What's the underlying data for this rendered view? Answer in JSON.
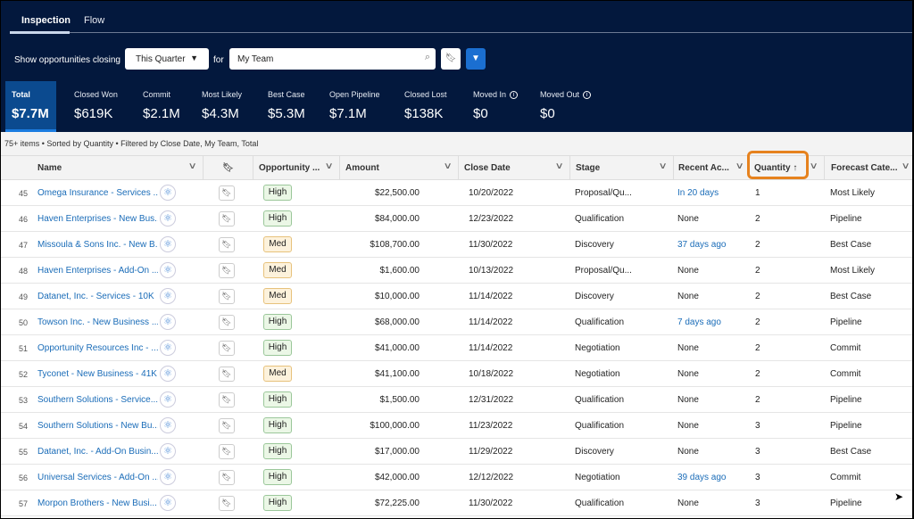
{
  "tabs": [
    {
      "label": "Inspection",
      "active": true
    },
    {
      "label": "Flow",
      "active": false
    }
  ],
  "filter": {
    "label": "Show opportunities closing",
    "period": "This Quarter",
    "for_label": "for",
    "team": "My Team"
  },
  "metrics": [
    {
      "title": "Total",
      "value": "$7.7M"
    },
    {
      "title": "Closed Won",
      "value": "$619K"
    },
    {
      "title": "Commit",
      "value": "$2.1M"
    },
    {
      "title": "Most Likely",
      "value": "$4.3M"
    },
    {
      "title": "Best Case",
      "value": "$5.3M"
    },
    {
      "title": "Open Pipeline",
      "value": "$7.1M"
    },
    {
      "title": "Closed Lost",
      "value": "$138K"
    },
    {
      "title": "Moved In",
      "value": "$0"
    },
    {
      "title": "Moved Out",
      "value": "$0"
    }
  ],
  "status": "75+ items • Sorted by Quantity • Filtered by Close Date, My Team, Total",
  "columns": {
    "name": "Name",
    "opportunity": "Opportunity ...",
    "amount": "Amount",
    "close_date": "Close Date",
    "stage": "Stage",
    "recent": "Recent Ac...",
    "quantity": "Quantity ↑",
    "forecast": "Forecast Cate..."
  },
  "colors": {
    "navy": "#03183d",
    "accent": "#0b4a8f",
    "highlight": "#e6821e",
    "link": "#1a6cb8"
  },
  "rows": [
    {
      "n": "45",
      "name": "Omega Insurance - Services ...",
      "score": "High",
      "amount": "$22,500.00",
      "date": "10/20/2022",
      "stage": "Proposal/Qu...",
      "recent": "In 20 days",
      "recent_link": true,
      "qty": "1",
      "forecast": "Most Likely"
    },
    {
      "n": "46",
      "name": "Haven Enterprises - New Bus...",
      "score": "High",
      "amount": "$84,000.00",
      "date": "12/23/2022",
      "stage": "Qualification",
      "recent": "None",
      "recent_link": false,
      "qty": "2",
      "forecast": "Pipeline"
    },
    {
      "n": "47",
      "name": "Missoula & Sons Inc. - New B...",
      "score": "Med",
      "amount": "$108,700.00",
      "date": "11/30/2022",
      "stage": "Discovery",
      "recent": "37 days ago",
      "recent_link": true,
      "qty": "2",
      "forecast": "Best Case"
    },
    {
      "n": "48",
      "name": "Haven Enterprises - Add-On ...",
      "score": "Med",
      "amount": "$1,600.00",
      "date": "10/13/2022",
      "stage": "Proposal/Qu...",
      "recent": "None",
      "recent_link": false,
      "qty": "2",
      "forecast": "Most Likely"
    },
    {
      "n": "49",
      "name": "Datanet, Inc. - Services - 10K",
      "score": "Med",
      "amount": "$10,000.00",
      "date": "11/14/2022",
      "stage": "Discovery",
      "recent": "None",
      "recent_link": false,
      "qty": "2",
      "forecast": "Best Case"
    },
    {
      "n": "50",
      "name": "Towson Inc. - New Business ...",
      "score": "High",
      "amount": "$68,000.00",
      "date": "11/14/2022",
      "stage": "Qualification",
      "recent": "7 days ago",
      "recent_link": true,
      "qty": "2",
      "forecast": "Pipeline"
    },
    {
      "n": "51",
      "name": "Opportunity Resources Inc - ...",
      "score": "High",
      "amount": "$41,000.00",
      "date": "11/14/2022",
      "stage": "Negotiation",
      "recent": "None",
      "recent_link": false,
      "qty": "2",
      "forecast": "Commit"
    },
    {
      "n": "52",
      "name": "Tyconet - New Business - 41K",
      "score": "Med",
      "amount": "$41,100.00",
      "date": "10/18/2022",
      "stage": "Negotiation",
      "recent": "None",
      "recent_link": false,
      "qty": "2",
      "forecast": "Commit"
    },
    {
      "n": "53",
      "name": "Southern Solutions - Service...",
      "score": "High",
      "amount": "$1,500.00",
      "date": "12/31/2022",
      "stage": "Qualification",
      "recent": "None",
      "recent_link": false,
      "qty": "2",
      "forecast": "Pipeline"
    },
    {
      "n": "54",
      "name": "Southern Solutions - New Bu...",
      "score": "High",
      "amount": "$100,000.00",
      "date": "11/23/2022",
      "stage": "Qualification",
      "recent": "None",
      "recent_link": false,
      "qty": "3",
      "forecast": "Pipeline"
    },
    {
      "n": "55",
      "name": "Datanet, Inc. - Add-On Busin...",
      "score": "High",
      "amount": "$17,000.00",
      "date": "11/29/2022",
      "stage": "Discovery",
      "recent": "None",
      "recent_link": false,
      "qty": "3",
      "forecast": "Best Case"
    },
    {
      "n": "56",
      "name": "Universal Services - Add-On ...",
      "score": "High",
      "amount": "$42,000.00",
      "date": "12/12/2022",
      "stage": "Negotiation",
      "recent": "39 days ago",
      "recent_link": true,
      "qty": "3",
      "forecast": "Commit"
    },
    {
      "n": "57",
      "name": "Morpon Brothers - New Busi...",
      "score": "High",
      "amount": "$72,225.00",
      "date": "11/30/2022",
      "stage": "Qualification",
      "recent": "None",
      "recent_link": false,
      "qty": "3",
      "forecast": "Pipeline"
    }
  ]
}
